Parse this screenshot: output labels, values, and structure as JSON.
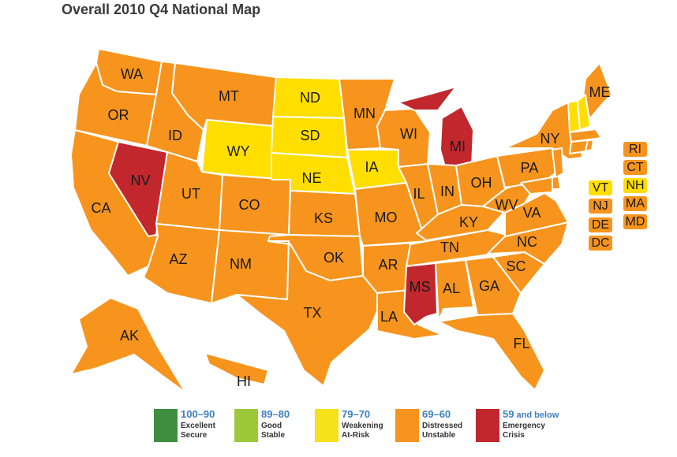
{
  "title": "Overall 2010 Q4 National Map",
  "colors": {
    "excellent": "#3d8f3f",
    "good": "#9dc83a",
    "weakening": "#f6e11a",
    "distressed": "#f7941d",
    "emergency": "#c1272d",
    "state_yellow": "#ffde00",
    "state_orange": "#f7941d",
    "state_red": "#c1272d",
    "border": "#ffffff"
  },
  "states": {
    "WA": "distressed",
    "OR": "distressed",
    "CA": "distressed",
    "NV": "emergency",
    "ID": "distressed",
    "MT": "distressed",
    "WY": "weakening",
    "UT": "distressed",
    "AZ": "distressed",
    "CO": "distressed",
    "NM": "distressed",
    "ND": "weakening",
    "SD": "weakening",
    "NE": "weakening",
    "KS": "distressed",
    "OK": "distressed",
    "TX": "distressed",
    "MN": "distressed",
    "IA": "weakening",
    "MO": "distressed",
    "AR": "distressed",
    "LA": "distressed",
    "WI": "distressed",
    "IL": "distressed",
    "MI": "emergency",
    "IN": "distressed",
    "OH": "distressed",
    "KY": "distressed",
    "TN": "distressed",
    "MS": "emergency",
    "AL": "distressed",
    "GA": "distressed",
    "FL": "distressed",
    "SC": "distressed",
    "NC": "distressed",
    "VA": "distressed",
    "WV": "distressed",
    "PA": "distressed",
    "NY": "distressed",
    "ME": "distressed",
    "VT": "weakening",
    "NH": "weakening",
    "MA": "distressed",
    "RI": "distressed",
    "CT": "distressed",
    "NJ": "distressed",
    "DE": "distressed",
    "MD": "distressed",
    "DC": "distressed",
    "AK": "distressed",
    "HI": "distressed"
  },
  "labels": {
    "WA": "WA",
    "OR": "OR",
    "CA": "CA",
    "NV": "NV",
    "ID": "ID",
    "MT": "MT",
    "WY": "WY",
    "UT": "UT",
    "AZ": "AZ",
    "CO": "CO",
    "NM": "NM",
    "ND": "ND",
    "SD": "SD",
    "NE": "NE",
    "KS": "KS",
    "OK": "OK",
    "TX": "TX",
    "MN": "MN",
    "IA": "IA",
    "MO": "MO",
    "AR": "AR",
    "LA": "LA",
    "WI": "WI",
    "IL": "IL",
    "MI": "MI",
    "IN": "IN",
    "OH": "OH",
    "KY": "KY",
    "TN": "TN",
    "MS": "MS",
    "AL": "AL",
    "GA": "GA",
    "FL": "FL",
    "SC": "SC",
    "NC": "NC",
    "VA": "VA",
    "WV": "WV",
    "PA": "PA",
    "NY": "NY",
    "ME": "ME",
    "AK": "AK",
    "HI": "HI"
  },
  "chips": {
    "VT": "VT",
    "NH": "NH",
    "MA": "MA",
    "RI": "RI",
    "CT": "CT",
    "NJ": "NJ",
    "DE": "DE",
    "MD": "MD",
    "DC": "DC"
  },
  "legend": [
    {
      "range": "100–90",
      "line1": "Excellent",
      "line2": "Secure",
      "color_key": "excellent"
    },
    {
      "range": "89–80",
      "line1": "Good",
      "line2": "Stable",
      "color_key": "good"
    },
    {
      "range": "79–70",
      "line1": "Weakening",
      "line2": "At-Risk",
      "color_key": "weakening"
    },
    {
      "range": "69–60",
      "line1": "Distressed",
      "line2": "Unstable",
      "color_key": "distressed"
    },
    {
      "range": "59",
      "range_suffix": " and below",
      "line1": "Emergency",
      "line2": "Crisis",
      "color_key": "emergency"
    }
  ]
}
